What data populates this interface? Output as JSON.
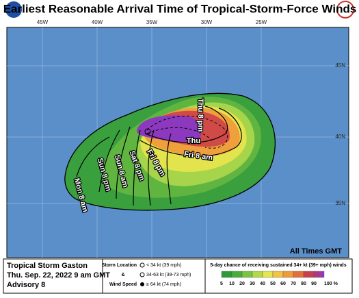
{
  "header": {
    "title": "Earliest Reasonable Arrival Time of Tropical-Storm-Force Winds"
  },
  "map": {
    "longitude_labels": [
      "45W",
      "40W",
      "35W",
      "30W",
      "25W"
    ],
    "latitude_labels": [
      "45N",
      "40N",
      "35N"
    ],
    "contour_labels": [
      "Thu 8 pm",
      "Thu",
      "Fri 8 am",
      "Fri 8 pm",
      "Sat 8 pm",
      "Sun 8 am",
      "Sun 8 pm",
      "Mon 8 am"
    ],
    "note": "All Times GMT"
  },
  "legend": {
    "storm": "Tropical Storm Gaston",
    "date": "Thu. Sep. 22, 2022  9 am GMT",
    "advisory": "Advisory 8",
    "storm_location": "Storm Location",
    "and": "&",
    "wind_speed": "Wind Speed",
    "symbols": [
      "< 34 kt (39 mph)",
      "34-63 kt (39-73 mph)",
      "≥ 64 kt (74 mph)"
    ],
    "scale_title": "5-day chance of receiving sustained 34+ kt (39+ mph) winds",
    "scale": [
      {
        "label": "5",
        "color": "#2e9a3a"
      },
      {
        "label": "10",
        "color": "#4aad3c"
      },
      {
        "label": "20",
        "color": "#79c442"
      },
      {
        "label": "30",
        "color": "#b2d94a"
      },
      {
        "label": "40",
        "color": "#e4e54f"
      },
      {
        "label": "50",
        "color": "#f2c443"
      },
      {
        "label": "60",
        "color": "#ef9b3a"
      },
      {
        "label": "70",
        "color": "#e66e3a"
      },
      {
        "label": "80",
        "color": "#c8404a"
      },
      {
        "label": "90",
        "color": "#a83a8c"
      },
      {
        "label": "100 %",
        "color": "#8a38c0"
      }
    ]
  }
}
